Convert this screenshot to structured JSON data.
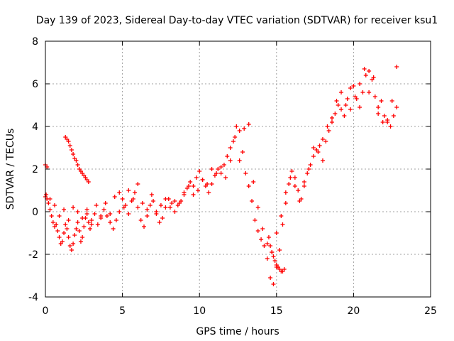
{
  "chart_data": {
    "type": "scatter",
    "title": "Day 139 of 2023, Sidereal Day-to-day VTEC variation (SDTVAR) for receiver ksu1",
    "xlabel": "GPS time / hours",
    "ylabel": "SDTVAR / TECUs",
    "xlim": [
      0,
      25
    ],
    "ylim": [
      -4,
      8
    ],
    "xticks": [
      "0",
      "5",
      "10",
      "15",
      "20",
      "25"
    ],
    "yticks": [
      "-4",
      "-2",
      "0",
      "2",
      "4",
      "6",
      "8"
    ],
    "grid": true,
    "marker": "plus",
    "color": "#ff0000",
    "series": [
      {
        "name": "SDTVAR",
        "x": [
          0.0,
          0.05,
          0.1,
          0.2,
          0.3,
          0.4,
          0.5,
          0.6,
          0.7,
          0.8,
          0.9,
          1.0,
          1.1,
          1.2,
          1.3,
          1.4,
          1.5,
          1.6,
          1.7,
          1.8,
          1.9,
          2.0,
          2.1,
          2.2,
          2.3,
          2.4,
          2.5,
          2.6,
          2.7,
          2.8,
          2.9,
          3.0,
          3.2,
          3.4,
          3.6,
          3.8,
          4.0,
          4.2,
          4.4,
          4.6,
          4.8,
          5.0,
          5.2,
          5.4,
          5.6,
          5.8,
          6.0,
          6.2,
          6.4,
          6.6,
          6.8,
          7.0,
          7.2,
          7.4,
          7.6,
          7.8,
          8.0,
          8.2,
          8.4,
          8.6,
          8.8,
          9.0,
          9.2,
          9.4,
          9.6,
          9.8,
          10.0,
          10.2,
          10.4,
          10.6,
          10.8,
          11.0,
          11.2,
          11.4,
          11.6,
          11.8,
          12.0,
          12.2,
          12.4,
          12.6,
          12.8,
          13.0,
          13.2,
          13.4,
          13.6,
          13.8,
          14.0,
          14.2,
          14.4,
          14.6,
          14.8,
          15.0,
          15.2,
          15.4,
          15.6,
          15.8,
          16.0,
          16.2,
          16.4,
          16.6,
          16.8,
          17.0,
          17.2,
          17.4,
          17.6,
          17.8,
          18.0,
          18.2,
          18.4,
          18.6,
          18.8,
          19.0,
          19.2,
          19.4,
          19.6,
          19.8,
          20.0,
          20.2,
          20.4,
          20.6,
          20.8,
          21.0,
          21.2,
          21.4,
          21.6,
          21.8,
          22.0,
          22.2,
          22.4,
          22.6,
          22.8,
          0.0,
          0.1,
          1.3,
          1.4,
          1.5,
          1.6,
          1.7,
          1.8,
          1.9,
          2.0,
          2.1,
          2.2,
          2.3,
          2.4,
          2.5,
          2.6,
          2.7,
          2.8,
          0.3,
          0.6,
          0.9,
          1.2,
          1.5,
          1.8,
          2.1,
          2.4,
          2.7,
          3.0,
          3.3,
          3.6,
          3.9,
          4.2,
          4.5,
          4.8,
          5.1,
          5.4,
          5.7,
          6.0,
          6.3,
          6.6,
          6.9,
          7.2,
          7.5,
          7.8,
          8.1,
          8.4,
          8.7,
          9.0,
          9.3,
          9.6,
          9.9,
          10.2,
          10.5,
          10.8,
          11.1,
          11.4,
          11.7,
          12.0,
          12.3,
          12.6,
          12.9,
          13.2,
          13.5,
          13.8,
          14.1,
          14.4,
          14.7,
          15.0,
          15.3,
          15.6,
          15.9,
          16.2,
          16.5,
          16.8,
          17.1,
          17.4,
          17.7,
          18.0,
          18.3,
          18.6,
          18.9,
          19.2,
          19.5,
          19.8,
          20.1,
          20.4,
          20.7,
          21.0,
          21.3,
          21.6,
          21.9,
          22.2,
          22.5,
          22.8,
          14.5,
          14.6,
          14.7,
          14.8,
          14.9,
          15.0,
          15.1,
          15.2,
          15.3,
          15.4,
          15.5
        ],
        "y": [
          0.7,
          0.8,
          0.6,
          0.4,
          0.1,
          -0.2,
          -0.5,
          -0.7,
          -0.6,
          -0.9,
          -1.2,
          -1.5,
          -1.4,
          -1.0,
          -0.6,
          -0.8,
          -1.2,
          -1.6,
          -1.8,
          -1.5,
          -1.1,
          -0.8,
          -0.5,
          -0.9,
          -1.4,
          -1.2,
          -0.7,
          -0.3,
          -0.1,
          -0.5,
          -0.8,
          -0.4,
          -0.1,
          -0.6,
          -0.3,
          0.1,
          -0.2,
          -0.5,
          -0.8,
          -0.4,
          0.0,
          0.6,
          0.3,
          -0.1,
          0.5,
          0.9,
          0.2,
          -0.4,
          -0.7,
          -0.2,
          0.3,
          0.5,
          0.0,
          -0.5,
          -0.3,
          0.2,
          0.6,
          0.4,
          0.0,
          0.3,
          0.5,
          0.8,
          1.1,
          1.4,
          1.2,
          1.6,
          1.9,
          1.5,
          1.2,
          0.9,
          1.3,
          1.7,
          2.0,
          1.8,
          2.2,
          2.6,
          3.0,
          3.3,
          4.0,
          3.8,
          2.8,
          1.8,
          1.2,
          0.5,
          -0.4,
          -0.9,
          -1.3,
          -1.6,
          -2.2,
          -3.1,
          -3.4,
          -2.6,
          -1.8,
          -0.6,
          0.4,
          1.3,
          1.9,
          1.6,
          1.0,
          0.6,
          1.2,
          1.8,
          2.2,
          2.6,
          2.9,
          3.1,
          2.4,
          3.3,
          3.8,
          4.2,
          4.6,
          5.0,
          4.8,
          4.5,
          5.3,
          5.8,
          5.9,
          5.3,
          4.9,
          5.6,
          6.4,
          6.6,
          6.2,
          5.4,
          4.9,
          5.2,
          4.5,
          4.2,
          4.0,
          4.5,
          4.9,
          2.2,
          2.1,
          3.5,
          3.4,
          3.3,
          3.1,
          2.9,
          2.7,
          2.5,
          2.4,
          2.2,
          2.0,
          1.9,
          1.8,
          1.7,
          1.6,
          1.5,
          1.4,
          0.6,
          0.3,
          -0.2,
          0.1,
          -0.4,
          0.2,
          0.0,
          -0.3,
          0.1,
          -0.6,
          0.3,
          -0.2,
          0.4,
          -0.1,
          0.7,
          0.9,
          0.2,
          1.0,
          0.6,
          1.3,
          0.4,
          0.1,
          0.8,
          -0.1,
          0.3,
          0.6,
          0.2,
          0.5,
          0.4,
          0.9,
          1.2,
          0.8,
          1.0,
          1.5,
          1.3,
          2.0,
          1.8,
          2.1,
          1.6,
          2.4,
          3.5,
          2.4,
          3.9,
          4.1,
          1.4,
          0.2,
          -0.8,
          -1.5,
          -1.9,
          -1.0,
          -0.2,
          0.9,
          1.6,
          1.2,
          0.5,
          1.4,
          2.0,
          3.0,
          2.8,
          3.4,
          4.0,
          4.4,
          5.2,
          5.6,
          5.0,
          4.8,
          5.4,
          6.0,
          6.7,
          5.6,
          6.3,
          4.6,
          4.2,
          4.3,
          5.2,
          6.8,
          -1.2,
          -1.6,
          -1.9,
          -2.1,
          -2.3,
          -2.5,
          -2.6,
          -2.7,
          -2.8,
          -2.8,
          -2.7
        ]
      }
    ]
  }
}
